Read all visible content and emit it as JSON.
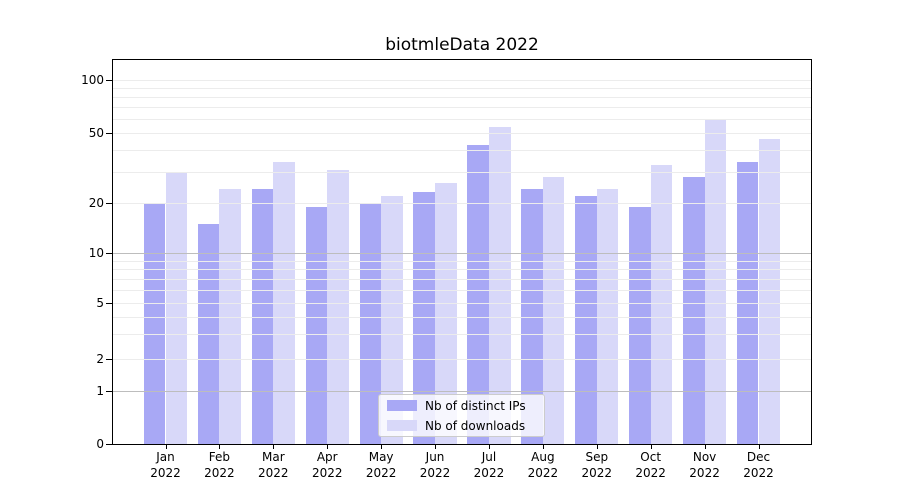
{
  "title": "biotmleData 2022",
  "chart_data": {
    "type": "bar",
    "title": "biotmleData 2022",
    "categories": [
      "Jan 2022",
      "Feb 2022",
      "Mar 2022",
      "Apr 2022",
      "May 2022",
      "Jun 2022",
      "Jul 2022",
      "Aug 2022",
      "Sep 2022",
      "Oct 2022",
      "Nov 2022",
      "Dec 2022"
    ],
    "x_tick_months": [
      "Jan",
      "Feb",
      "Mar",
      "Apr",
      "May",
      "Jun",
      "Jul",
      "Aug",
      "Sep",
      "Oct",
      "Nov",
      "Dec"
    ],
    "x_tick_year": "2022",
    "series": [
      {
        "name": "Nb of distinct IPs",
        "color": "#a8a8f5",
        "values": [
          20,
          15,
          24,
          19,
          20,
          23,
          43,
          24,
          22,
          19,
          28,
          34
        ]
      },
      {
        "name": "Nb of downloads",
        "color": "#d8d8f9",
        "values": [
          30,
          24,
          34,
          31,
          22,
          26,
          54,
          28,
          24,
          33,
          59,
          46
        ]
      }
    ],
    "y_axis": {
      "scale": "log above 1, linear 0-1",
      "tick_labels": [
        "100",
        "50",
        "20",
        "10",
        "5",
        "2",
        "1",
        "0"
      ],
      "tick_values": [
        100,
        50,
        20,
        10,
        5,
        2,
        1,
        0
      ],
      "gridline_values": [
        1,
        2,
        3,
        4,
        5,
        6,
        7,
        8,
        9,
        10,
        20,
        30,
        40,
        50,
        60,
        70,
        80,
        90,
        100
      ],
      "major_gridline_values": [
        1,
        10
      ]
    },
    "grid": "on",
    "legend_position": "lower center",
    "ylim": [
      0,
      110
    ]
  },
  "legend": {
    "items": [
      {
        "label": "Nb of distinct IPs",
        "color": "#a8a8f5"
      },
      {
        "label": "Nb of downloads",
        "color": "#d8d8f9"
      }
    ]
  },
  "colors": {
    "bar_ips": "#a8a8f5",
    "bar_downloads": "#d8d8f9",
    "grid_minor": "#ececec",
    "grid_major": "#bdbdbd",
    "spine": "#000000",
    "legend_border": "#cccccc"
  }
}
